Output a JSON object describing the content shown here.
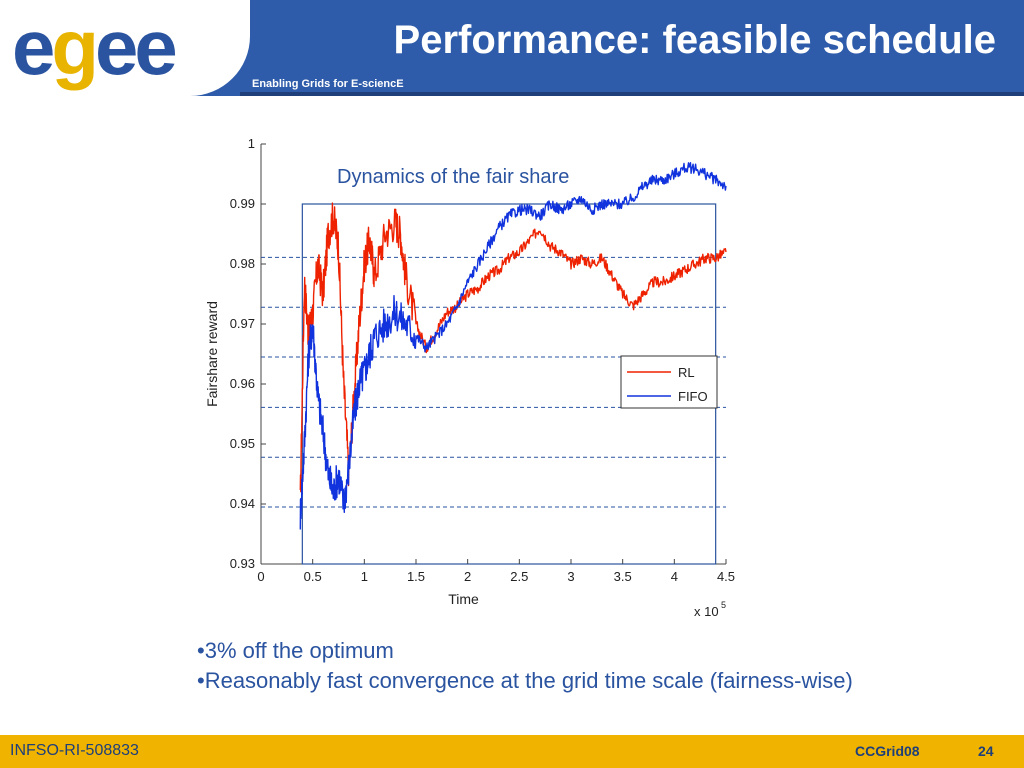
{
  "header": {
    "logo_text_a": "e",
    "logo_text_b": "g",
    "logo_text_c": "ee",
    "title": "Performance: feasible schedule",
    "subtitle": "Enabling Grids for E-sciencE"
  },
  "chart_caption": "Dynamics of the fair share",
  "bullets": [
    "•3% off the optimum",
    "•Reasonably fast convergence at the grid time scale (fairness-wise)"
  ],
  "footer": {
    "left": "INFSO-RI-508833",
    "event": "CCGrid08",
    "page": "24"
  },
  "colors": {
    "header_blue": "#2f5caa",
    "footer_gold": "#f0b400",
    "rl": "#ee2200",
    "fifo": "#1133dd"
  },
  "chart_data": {
    "type": "line",
    "title": "",
    "xlabel": "Time",
    "ylabel": "Fairshare reward",
    "x_multiplier_label": "x 10",
    "x_multiplier_exp": "5",
    "xlim": [
      0,
      4.5
    ],
    "ylim": [
      0.93,
      1.0
    ],
    "xticks": [
      "0",
      "0.5",
      "1",
      "1.5",
      "2",
      "2.5",
      "3",
      "3.5",
      "4",
      "4.5"
    ],
    "xtick_values": [
      0,
      0.5,
      1,
      1.5,
      2,
      2.5,
      3,
      3.5,
      4,
      4.5
    ],
    "yticks": [
      "0.93",
      "0.94",
      "0.95",
      "0.96",
      "0.97",
      "0.98",
      "0.99",
      "1"
    ],
    "ytick_values": [
      0.93,
      0.94,
      0.95,
      0.96,
      0.97,
      0.98,
      0.99,
      1.0
    ],
    "reference_lines": [
      0.9395,
      0.9478,
      0.9561,
      0.9645,
      0.9728,
      0.9811
    ],
    "box": {
      "x": [
        0.4,
        4.4
      ],
      "y": [
        0.93,
        0.99
      ]
    },
    "legend_position": "center-right",
    "series": [
      {
        "name": "RL",
        "color": "#ee2200",
        "x": [
          0.38,
          0.42,
          0.46,
          0.5,
          0.55,
          0.6,
          0.65,
          0.7,
          0.75,
          0.8,
          0.85,
          0.9,
          0.95,
          1.0,
          1.05,
          1.1,
          1.2,
          1.3,
          1.35,
          1.4,
          1.5,
          1.6,
          1.7,
          1.8,
          1.9,
          2.0,
          2.1,
          2.2,
          2.3,
          2.4,
          2.5,
          2.6,
          2.7,
          2.8,
          2.9,
          3.0,
          3.1,
          3.2,
          3.3,
          3.4,
          3.5,
          3.6,
          3.7,
          3.8,
          3.9,
          4.0,
          4.1,
          4.2,
          4.3,
          4.4,
          4.5
        ],
        "y": [
          0.94,
          0.977,
          0.968,
          0.972,
          0.98,
          0.975,
          0.985,
          0.988,
          0.983,
          0.96,
          0.945,
          0.958,
          0.97,
          0.98,
          0.984,
          0.978,
          0.985,
          0.987,
          0.985,
          0.978,
          0.97,
          0.966,
          0.969,
          0.972,
          0.973,
          0.975,
          0.976,
          0.978,
          0.979,
          0.981,
          0.982,
          0.984,
          0.986,
          0.983,
          0.982,
          0.98,
          0.981,
          0.98,
          0.981,
          0.978,
          0.975,
          0.973,
          0.975,
          0.977,
          0.977,
          0.978,
          0.979,
          0.98,
          0.981,
          0.981,
          0.982
        ]
      },
      {
        "name": "FIFO",
        "color": "#1133dd",
        "x": [
          0.38,
          0.42,
          0.46,
          0.5,
          0.55,
          0.6,
          0.65,
          0.7,
          0.75,
          0.8,
          0.85,
          0.9,
          0.95,
          1.0,
          1.05,
          1.1,
          1.2,
          1.3,
          1.4,
          1.5,
          1.6,
          1.7,
          1.8,
          1.9,
          2.0,
          2.1,
          2.2,
          2.3,
          2.4,
          2.5,
          2.6,
          2.7,
          2.8,
          2.9,
          3.0,
          3.1,
          3.2,
          3.3,
          3.4,
          3.5,
          3.6,
          3.7,
          3.8,
          3.9,
          4.0,
          4.1,
          4.2,
          4.3,
          4.4,
          4.5
        ],
        "y": [
          0.938,
          0.95,
          0.965,
          0.97,
          0.958,
          0.952,
          0.945,
          0.942,
          0.945,
          0.94,
          0.946,
          0.955,
          0.96,
          0.962,
          0.965,
          0.968,
          0.97,
          0.972,
          0.97,
          0.968,
          0.966,
          0.968,
          0.97,
          0.973,
          0.977,
          0.98,
          0.983,
          0.986,
          0.988,
          0.989,
          0.989,
          0.988,
          0.99,
          0.989,
          0.99,
          0.991,
          0.989,
          0.99,
          0.99,
          0.99,
          0.991,
          0.993,
          0.994,
          0.994,
          0.995,
          0.996,
          0.996,
          0.995,
          0.994,
          0.993
        ]
      }
    ]
  }
}
